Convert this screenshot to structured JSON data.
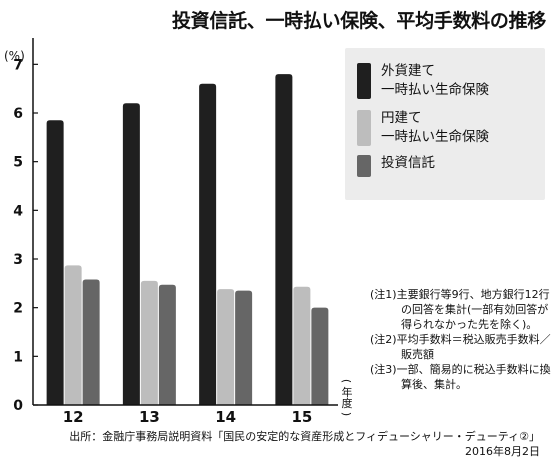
{
  "chart_data": {
    "type": "bar",
    "title": "投資信託、一時払い保険、平均手数料の推移",
    "ylabel": "(%)",
    "xlabel": "(年度)",
    "categories": [
      "12",
      "13",
      "14",
      "15"
    ],
    "ylim": [
      0,
      7.5
    ],
    "yticks": [
      "0",
      "1",
      "2",
      "3",
      "4",
      "5",
      "6",
      "7"
    ],
    "series": [
      {
        "name": "外貨建て\n一時払い生命保険",
        "color": "#1f1f1f",
        "values": [
          5.85,
          6.2,
          6.6,
          6.8
        ]
      },
      {
        "name": "円建て\n一時払い生命保険",
        "color": "#bdbdbd",
        "values": [
          2.87,
          2.55,
          2.38,
          2.43
        ]
      },
      {
        "name": "投資信託",
        "color": "#666666",
        "values": [
          2.58,
          2.47,
          2.35,
          2.0
        ]
      }
    ],
    "legend_position": "top-right",
    "grid": false
  },
  "notes": [
    "(注1)主要銀行等9行、地方銀行12行の回答を集計(一部有効回答が得られなかった先を除く)。",
    "(注2)平均手数料＝税込販売手数料／販売額",
    "(注3)一部、簡易的に税込手数料に換算後、集計。"
  ],
  "source": {
    "line1": "出所：金融庁事務局説明資料「国民の安定的な資産形成とフィデューシャリー・デューティ②」",
    "line2": "2016年8月2日"
  }
}
